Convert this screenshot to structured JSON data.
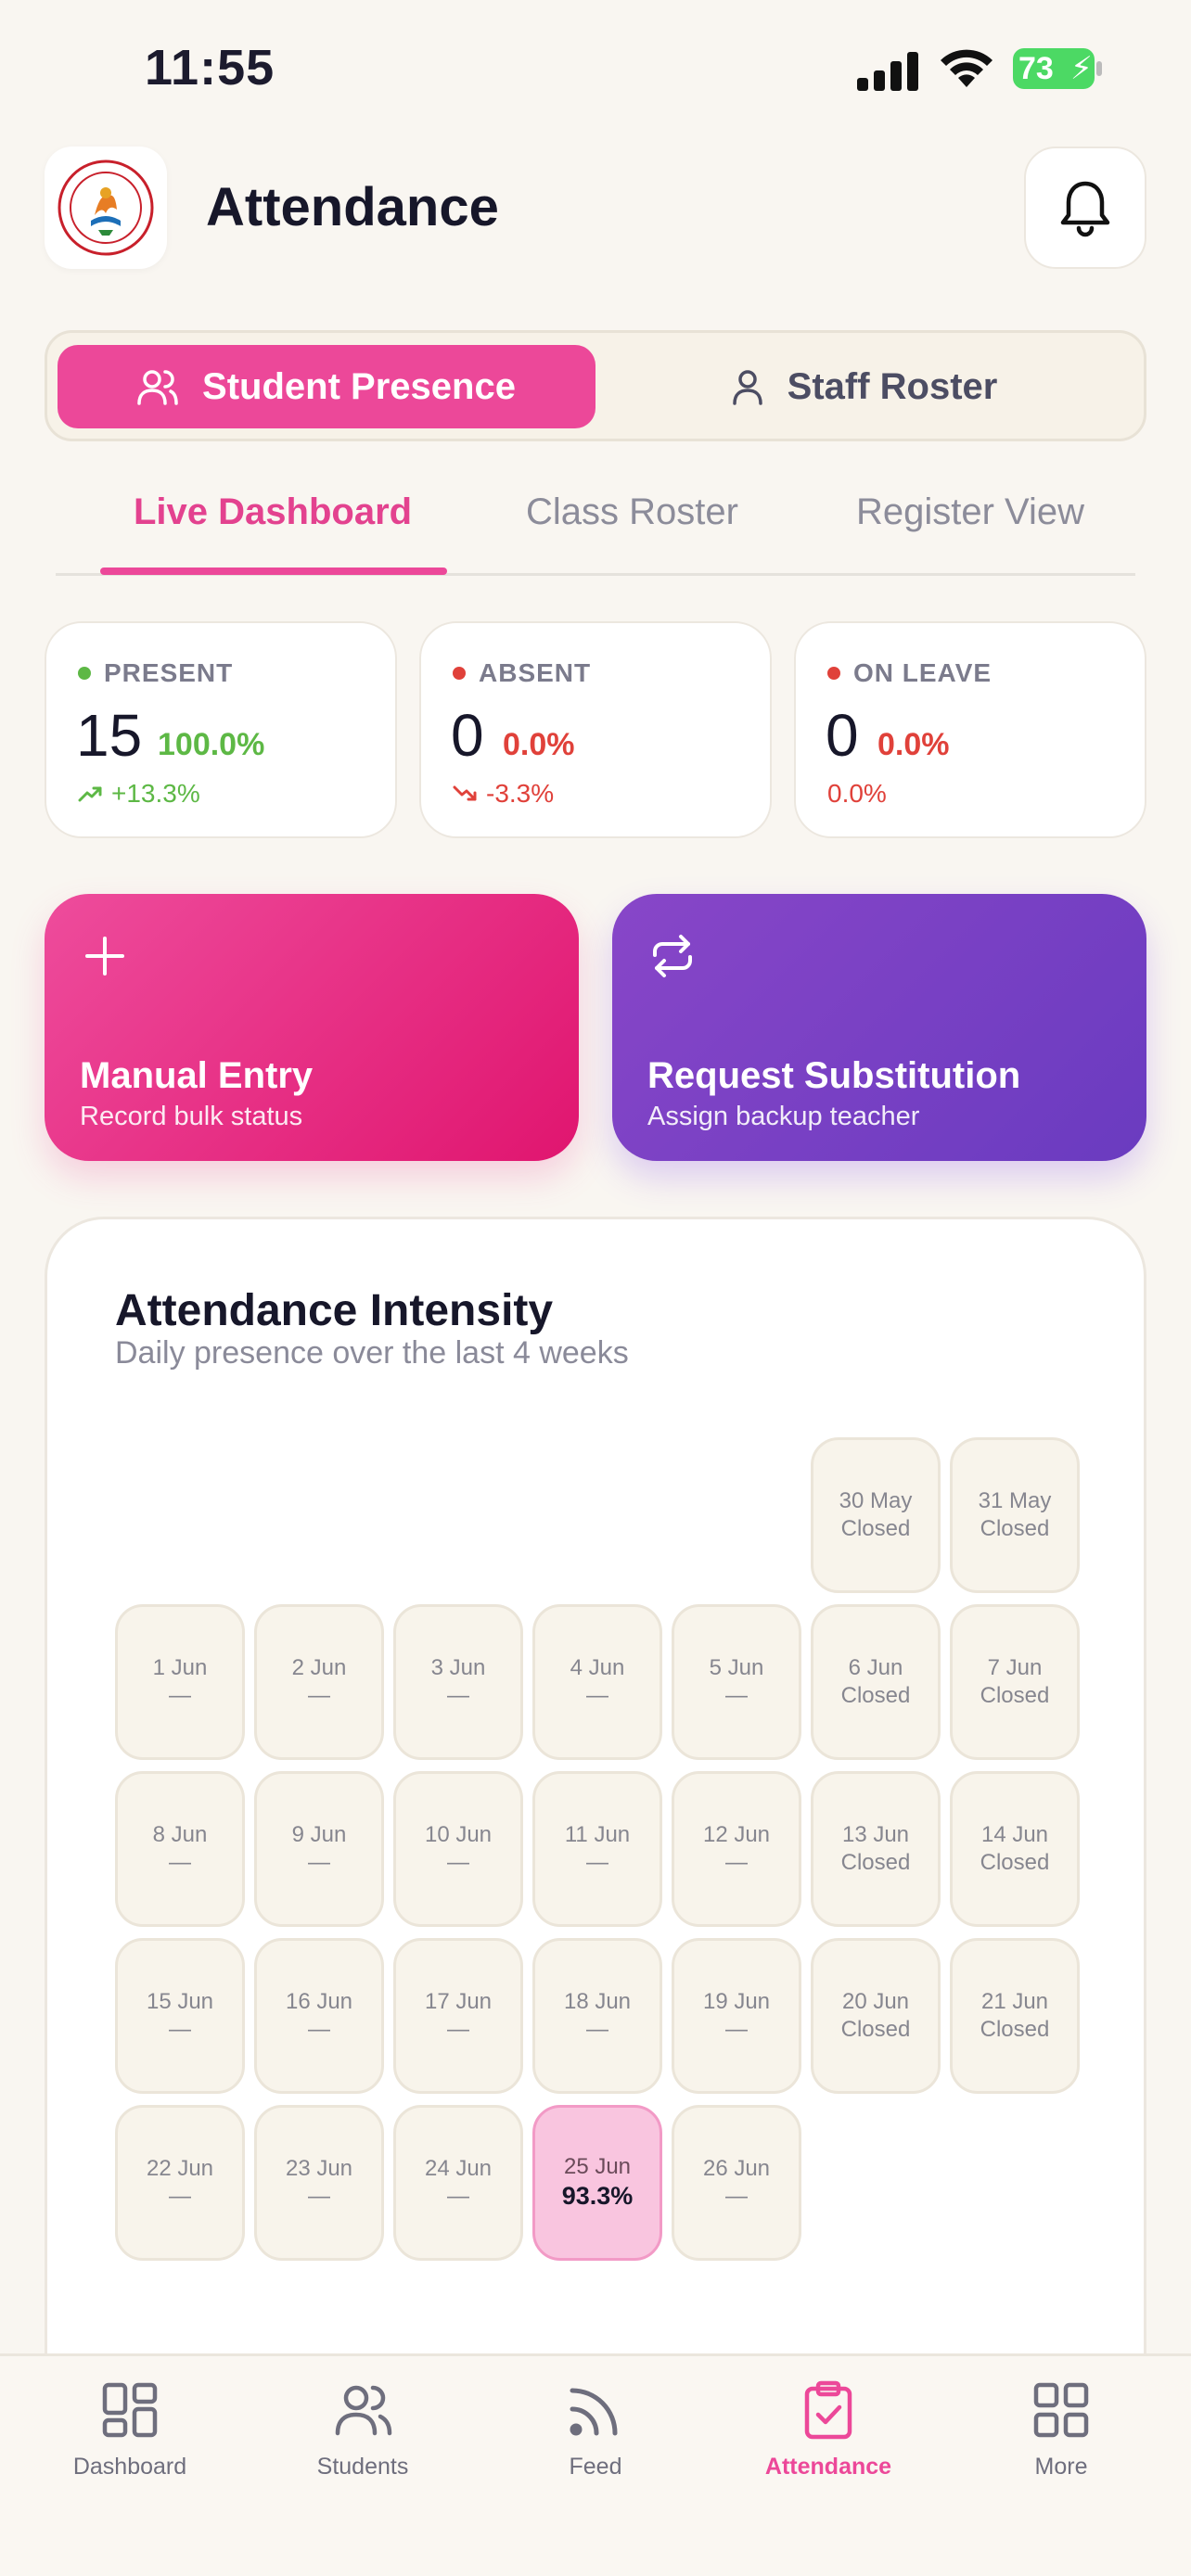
{
  "status_bar": {
    "time": "11:55",
    "battery": "73"
  },
  "header": {
    "title": "Attendance",
    "logo_text": "NICE GROUP OF EDUCATION CHETAWALA"
  },
  "segments": {
    "active_label": "Student Presence",
    "inactive_label": "Staff Roster"
  },
  "tabs": [
    {
      "label": "Live Dashboard"
    },
    {
      "label": "Class Roster"
    },
    {
      "label": "Register View"
    }
  ],
  "stats": [
    {
      "label": "PRESENT",
      "value": "15",
      "percent": "100.0%",
      "trend": "+13.3%",
      "color": "#5db845"
    },
    {
      "label": "ABSENT",
      "value": "0",
      "percent": "0.0%",
      "trend": "-3.3%",
      "color": "#e0413a"
    },
    {
      "label": "ON LEAVE",
      "value": "0",
      "percent": "0.0%",
      "trend": "0.0%",
      "color": "#e0413a"
    }
  ],
  "actions": {
    "manual": {
      "title": "Manual Entry",
      "subtitle": "Record bulk status"
    },
    "substitution": {
      "title": "Request Substitution",
      "subtitle": "Assign backup teacher"
    }
  },
  "heatmap": {
    "title": "Attendance Intensity",
    "subtitle": "Daily presence over the last 4 weeks",
    "days": [
      {
        "date": "30 May",
        "value": "Closed"
      },
      {
        "date": "31 May",
        "value": "Closed"
      },
      {
        "date": "1 Jun",
        "value": "—"
      },
      {
        "date": "2 Jun",
        "value": "—"
      },
      {
        "date": "3 Jun",
        "value": "—"
      },
      {
        "date": "4 Jun",
        "value": "—"
      },
      {
        "date": "5 Jun",
        "value": "—"
      },
      {
        "date": "6 Jun",
        "value": "Closed"
      },
      {
        "date": "7 Jun",
        "value": "Closed"
      },
      {
        "date": "8 Jun",
        "value": "—"
      },
      {
        "date": "9 Jun",
        "value": "—"
      },
      {
        "date": "10 Jun",
        "value": "—"
      },
      {
        "date": "11 Jun",
        "value": "—"
      },
      {
        "date": "12 Jun",
        "value": "—"
      },
      {
        "date": "13 Jun",
        "value": "Closed"
      },
      {
        "date": "14 Jun",
        "value": "Closed"
      },
      {
        "date": "15 Jun",
        "value": "—"
      },
      {
        "date": "16 Jun",
        "value": "—"
      },
      {
        "date": "17 Jun",
        "value": "—"
      },
      {
        "date": "18 Jun",
        "value": "—"
      },
      {
        "date": "19 Jun",
        "value": "—"
      },
      {
        "date": "20 Jun",
        "value": "Closed"
      },
      {
        "date": "21 Jun",
        "value": "Closed"
      },
      {
        "date": "22 Jun",
        "value": "—"
      },
      {
        "date": "23 Jun",
        "value": "—"
      },
      {
        "date": "24 Jun",
        "value": "—"
      },
      {
        "date": "25 Jun",
        "value": "93.3%"
      },
      {
        "date": "26 Jun",
        "value": "—"
      }
    ]
  },
  "bottom_nav": [
    {
      "label": "Dashboard",
      "icon": "grid-icon"
    },
    {
      "label": "Students",
      "icon": "users-icon"
    },
    {
      "label": "Feed",
      "icon": "rss-icon"
    },
    {
      "label": "Attendance",
      "icon": "clipboard-check-icon"
    },
    {
      "label": "More",
      "icon": "grid-icon"
    }
  ],
  "colors": {
    "accent": "#ec4899",
    "purple": "#7c3aed",
    "background": "#f9f6f1"
  }
}
